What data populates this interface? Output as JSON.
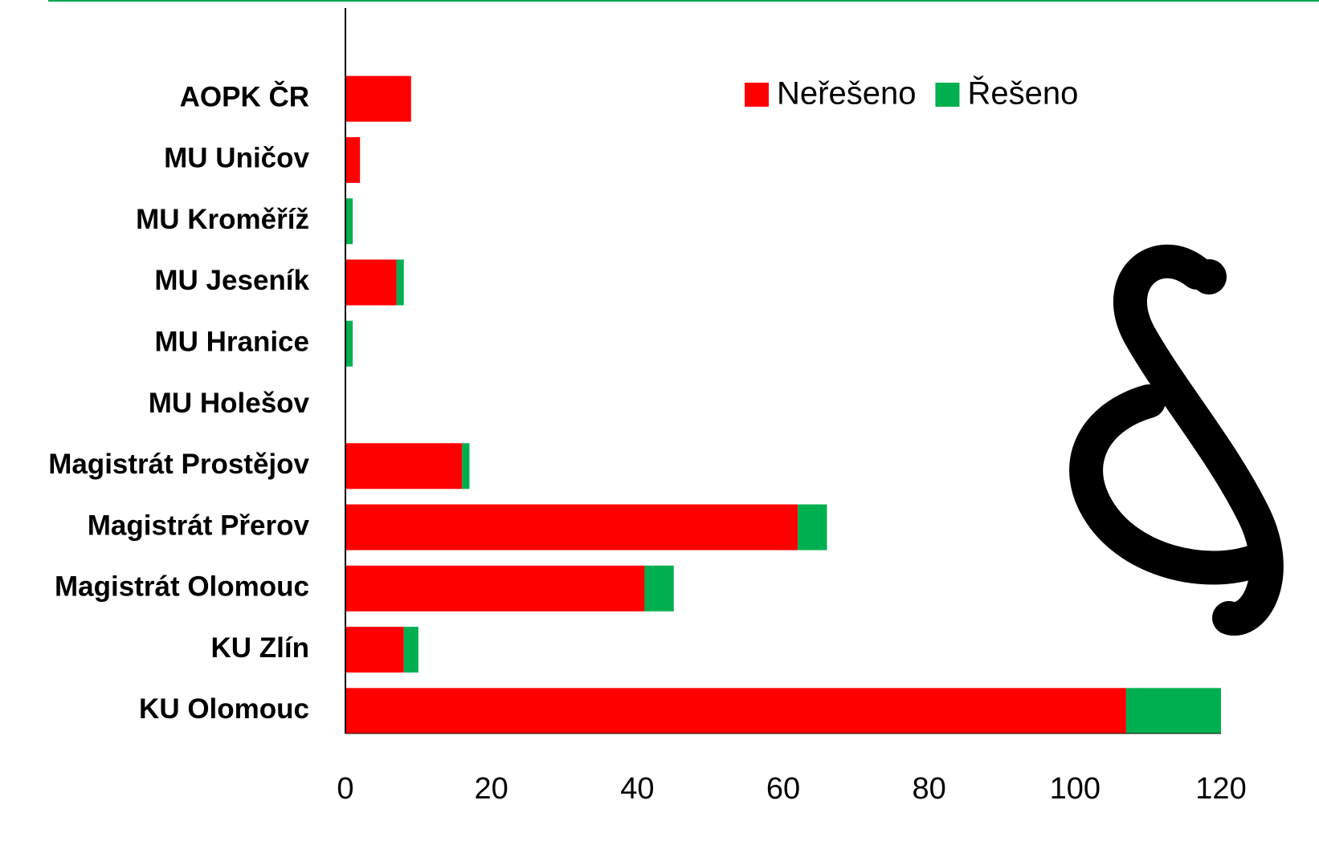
{
  "chart_data": {
    "type": "stacked-bar-horizontal",
    "categories": [
      "AOPK ČR",
      "MU Uničov",
      "MU Kroměříž",
      "MU Jeseník",
      "MU Hranice",
      "MU Holešov",
      "Magistrát Prostějov",
      "Magistrát Přerov",
      "Magistrát Olomouc",
      "KU Zlín",
      "KU Olomouc"
    ],
    "series": [
      {
        "name": "Neřešeno",
        "color": "#ff0000",
        "values": [
          9,
          2,
          0,
          7,
          0,
          0,
          16,
          62,
          41,
          8,
          107
        ]
      },
      {
        "name": "Řešeno",
        "color": "#00b050",
        "values": [
          0,
          0,
          1,
          1,
          1,
          0,
          1,
          4,
          4,
          2,
          13
        ]
      }
    ],
    "xlim": [
      0,
      120
    ],
    "xticks": [
      0,
      20,
      40,
      60,
      80,
      100,
      120
    ],
    "grid": false,
    "legend": "top-right"
  }
}
